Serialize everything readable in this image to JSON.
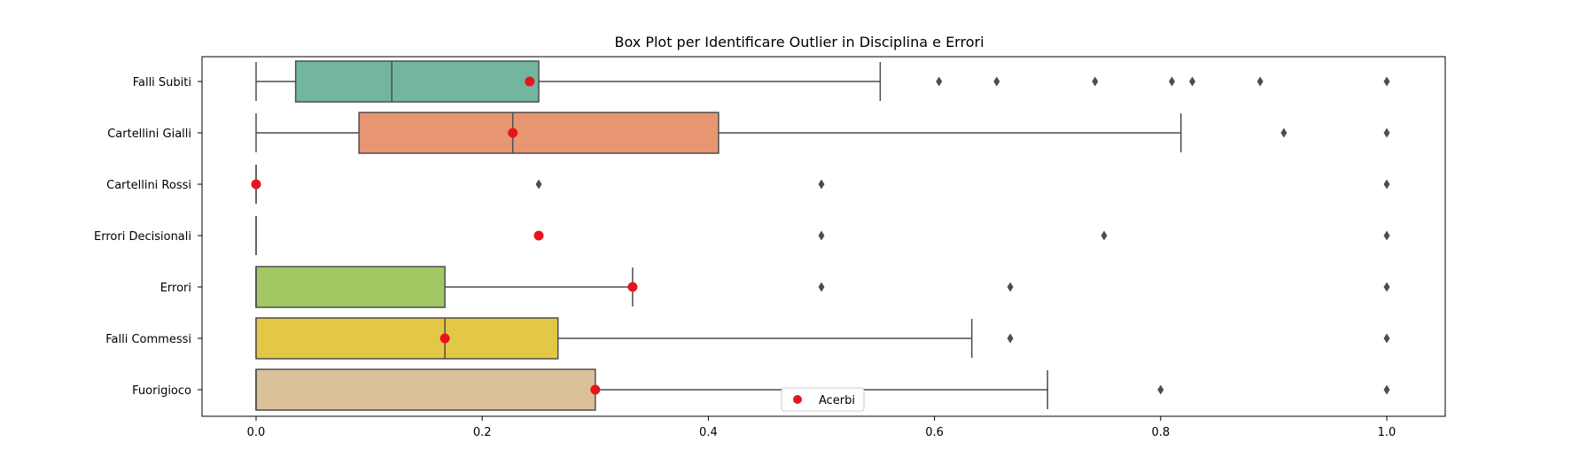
{
  "chart_data": {
    "type": "boxplot",
    "orientation": "horizontal",
    "title": "Box Plot per Identificare Outlier in Disciplina e Errori",
    "xlabel": "",
    "ylabel": "",
    "xlim": [
      -0.05,
      1.05
    ],
    "x_ticks": [
      0.0,
      0.2,
      0.4,
      0.6,
      0.8,
      1.0
    ],
    "x_tick_labels": [
      "0.0",
      "0.2",
      "0.4",
      "0.6",
      "0.8",
      "1.0"
    ],
    "grid": false,
    "categories": [
      "Falli Subiti",
      "Cartellini Gialli",
      "Cartellini Rossi",
      "Errori Decisionali",
      "Errori",
      "Falli Commessi",
      "Fuorigioco"
    ],
    "boxes": [
      {
        "category": "Falli Subiti",
        "color": "#72b6a0",
        "whisker_low": 0.0,
        "q1": 0.035,
        "median": 0.12,
        "q3": 0.25,
        "whisker_high": 0.552,
        "outliers": [
          0.604,
          0.655,
          0.742,
          0.81,
          0.828,
          0.888,
          1.0
        ]
      },
      {
        "category": "Cartellini Gialli",
        "color": "#e89672",
        "whisker_low": 0.0,
        "q1": 0.091,
        "median": 0.227,
        "q3": 0.409,
        "whisker_high": 0.818,
        "outliers": [
          0.909,
          1.0
        ]
      },
      {
        "category": "Cartellini Rossi",
        "color": "#8d9fc9",
        "whisker_low": 0.0,
        "q1": 0.0,
        "median": 0.0,
        "q3": 0.0,
        "whisker_high": 0.0,
        "outliers": [
          0.25,
          0.5,
          1.0
        ]
      },
      {
        "category": "Errori Decisionali",
        "color": "#d48cbe",
        "whisker_low": 0.0,
        "q1": 0.0,
        "median": 0.0,
        "q3": 0.0,
        "whisker_high": 0.0,
        "outliers": [
          0.25,
          0.5,
          0.75,
          1.0
        ]
      },
      {
        "category": "Errori",
        "color": "#a2c863",
        "whisker_low": 0.0,
        "q1": 0.0,
        "median": 0.0,
        "q3": 0.167,
        "whisker_high": 0.333,
        "outliers": [
          0.5,
          0.667,
          1.0
        ]
      },
      {
        "category": "Falli Commessi",
        "color": "#e2c845",
        "whisker_low": 0.0,
        "q1": 0.0,
        "median": 0.167,
        "q3": 0.267,
        "whisker_high": 0.633,
        "outliers": [
          0.667,
          1.0
        ]
      },
      {
        "category": "Fuorigioco",
        "color": "#dbc19a",
        "whisker_low": 0.0,
        "q1": 0.0,
        "median": 0.0,
        "q3": 0.3,
        "whisker_high": 0.7,
        "outliers": [
          0.8,
          1.0
        ]
      }
    ],
    "highlight": {
      "name": "Acerbi",
      "color": "#e8141c",
      "values": [
        0.242,
        0.227,
        0.0,
        0.25,
        0.333,
        0.167,
        0.3
      ]
    },
    "legend": {
      "position": "lower-center",
      "entries": [
        "Acerbi"
      ]
    },
    "line_color": "#4d4d4d"
  }
}
